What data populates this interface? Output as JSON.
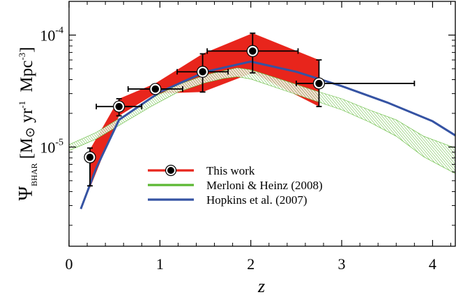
{
  "chart_data": {
    "type": "line",
    "xlabel": "z",
    "ylabel": {
      "symbol": "Ψ",
      "subscript": "BHAR",
      "units_prefix": "[M",
      "sun_symbol": "⊙",
      "yr": " yr",
      "yr_exp": "-1",
      "mpc": "  Mpc",
      "mpc_exp": "-3",
      "close": "]"
    },
    "xlim": [
      0,
      4.25
    ],
    "ylim": [
      1.3e-06,
      0.0002
    ],
    "yscale": "log",
    "xticks": [
      {
        "value": 0,
        "label": "0"
      },
      {
        "value": 1,
        "label": "1"
      },
      {
        "value": 2,
        "label": "2"
      },
      {
        "value": 3,
        "label": "3"
      },
      {
        "value": 4,
        "label": "4"
      }
    ],
    "yticks": [
      {
        "value": 1e-05,
        "base": "10",
        "exp": "-5"
      },
      {
        "value": 0.0001,
        "base": "10",
        "exp": "-4"
      }
    ],
    "legend_position": "center",
    "legend": [
      {
        "label": "This work",
        "color": "#e8251c"
      },
      {
        "label": "Merloni & Heinz (2008)",
        "color": "#5cb833"
      },
      {
        "label": "Hopkins et al. (2007)",
        "color": "#3553a3"
      }
    ],
    "series": [
      {
        "name": "This work",
        "color": "#e8251c",
        "points": [
          {
            "x": 0.23,
            "y": 8.1e-06,
            "xerr": [
              0.05,
              0.05
            ],
            "ylo": 4.5e-06,
            "yhi": 9.8e-06
          },
          {
            "x": 0.55,
            "y": 2.3e-05,
            "xerr": [
              0.25,
              0.25
            ],
            "ylo": 1.9e-05,
            "yhi": 2.7e-05
          },
          {
            "x": 0.95,
            "y": 3.3e-05,
            "xerr": [
              0.3,
              0.3
            ],
            "ylo": 3e-05,
            "yhi": 3.6e-05
          },
          {
            "x": 1.47,
            "y": 4.7e-05,
            "xerr": [
              0.28,
              0.28
            ],
            "ylo": 3.1e-05,
            "yhi": 6.8e-05
          },
          {
            "x": 2.02,
            "y": 7.2e-05,
            "xerr": [
              0.5,
              0.5
            ],
            "ylo": 4.6e-05,
            "yhi": 0.000104
          },
          {
            "x": 2.75,
            "y": 3.7e-05,
            "xerr": [
              0.25,
              1.05
            ],
            "ylo": 2.3e-05,
            "yhi": 6e-05
          }
        ],
        "band_lower": [
          {
            "x": 0.23,
            "y": 4.3e-06
          },
          {
            "x": 0.55,
            "y": 1.9e-05
          },
          {
            "x": 0.95,
            "y": 3e-05
          },
          {
            "x": 1.47,
            "y": 3.1e-05
          },
          {
            "x": 2.02,
            "y": 4.6e-05
          },
          {
            "x": 2.75,
            "y": 2.3e-05
          }
        ],
        "band_upper": [
          {
            "x": 0.23,
            "y": 9.5e-06
          },
          {
            "x": 0.55,
            "y": 2.7e-05
          },
          {
            "x": 0.95,
            "y": 3.7e-05
          },
          {
            "x": 1.47,
            "y": 6.8e-05
          },
          {
            "x": 2.02,
            "y": 0.000104
          },
          {
            "x": 2.75,
            "y": 6e-05
          }
        ]
      },
      {
        "name": "Merloni & Heinz (2008)",
        "color": "#5cb833",
        "band_upper": [
          {
            "x": 0.0,
            "y": 1.05e-05
          },
          {
            "x": 0.3,
            "y": 1.35e-05
          },
          {
            "x": 0.6,
            "y": 1.9e-05
          },
          {
            "x": 0.9,
            "y": 2.7e-05
          },
          {
            "x": 1.2,
            "y": 3.6e-05
          },
          {
            "x": 1.5,
            "y": 4.4e-05
          },
          {
            "x": 1.7,
            "y": 4.8e-05
          },
          {
            "x": 1.85,
            "y": 5.1e-05
          },
          {
            "x": 2.0,
            "y": 4.9e-05
          },
          {
            "x": 2.3,
            "y": 4.1e-05
          },
          {
            "x": 2.7,
            "y": 3.2e-05
          },
          {
            "x": 3.0,
            "y": 2.7e-05
          },
          {
            "x": 3.3,
            "y": 2.15e-05
          },
          {
            "x": 3.6,
            "y": 1.75e-05
          },
          {
            "x": 3.9,
            "y": 1.25e-05
          },
          {
            "x": 4.25,
            "y": 9.8e-06
          }
        ],
        "band_lower": [
          {
            "x": 0.0,
            "y": 9.3e-06
          },
          {
            "x": 0.3,
            "y": 1.18e-05
          },
          {
            "x": 0.6,
            "y": 1.65e-05
          },
          {
            "x": 0.9,
            "y": 2.3e-05
          },
          {
            "x": 1.2,
            "y": 3.1e-05
          },
          {
            "x": 1.5,
            "y": 3.75e-05
          },
          {
            "x": 1.7,
            "y": 4.1e-05
          },
          {
            "x": 1.85,
            "y": 4.25e-05
          },
          {
            "x": 2.0,
            "y": 4.05e-05
          },
          {
            "x": 2.3,
            "y": 3.35e-05
          },
          {
            "x": 2.7,
            "y": 2.6e-05
          },
          {
            "x": 3.0,
            "y": 2.15e-05
          },
          {
            "x": 3.3,
            "y": 1.68e-05
          },
          {
            "x": 3.6,
            "y": 1.25e-05
          },
          {
            "x": 3.9,
            "y": 8.2e-06
          },
          {
            "x": 4.25,
            "y": 5.8e-06
          }
        ]
      },
      {
        "name": "Hopkins et al. (2007)",
        "color": "#3553a3",
        "line": [
          {
            "x": 0.13,
            "y": 2.8e-06
          },
          {
            "x": 0.3,
            "y": 6.5e-06
          },
          {
            "x": 0.55,
            "y": 1.75e-05
          },
          {
            "x": 1.0,
            "y": 3.1e-05
          },
          {
            "x": 1.5,
            "y": 4.7e-05
          },
          {
            "x": 2.0,
            "y": 5.8e-05
          },
          {
            "x": 2.5,
            "y": 4.7e-05
          },
          {
            "x": 3.0,
            "y": 3.5e-05
          },
          {
            "x": 3.5,
            "y": 2.5e-05
          },
          {
            "x": 4.0,
            "y": 1.7e-05
          },
          {
            "x": 4.25,
            "y": 1.27e-05
          }
        ]
      }
    ]
  }
}
